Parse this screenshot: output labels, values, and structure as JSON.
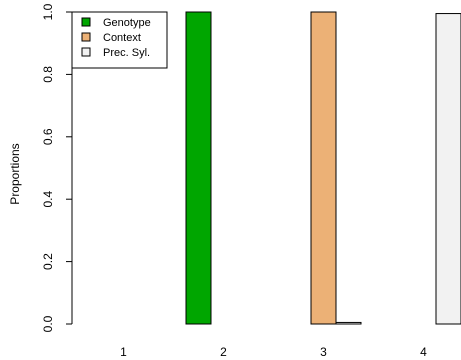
{
  "chart_data": {
    "type": "bar",
    "title": "",
    "xlabel": "",
    "ylabel": "Proportions",
    "ylim": [
      0,
      1
    ],
    "yticks": [
      "0.0",
      "0.2",
      "0.4",
      "0.6",
      "0.8",
      "1.0"
    ],
    "categories": [
      "1",
      "2",
      "3",
      "4"
    ],
    "series": [
      {
        "name": "Genotype",
        "color": "#00a600",
        "values": [
          0,
          1,
          0,
          0
        ]
      },
      {
        "name": "Context",
        "color": "#ecb176",
        "values": [
          0,
          0,
          1,
          0
        ]
      },
      {
        "name": "Prec. Syl.",
        "color": "#f2f2f2",
        "values": [
          0,
          0,
          0.005,
          0.995
        ]
      }
    ],
    "legend_position": "top-left",
    "grid": false
  }
}
